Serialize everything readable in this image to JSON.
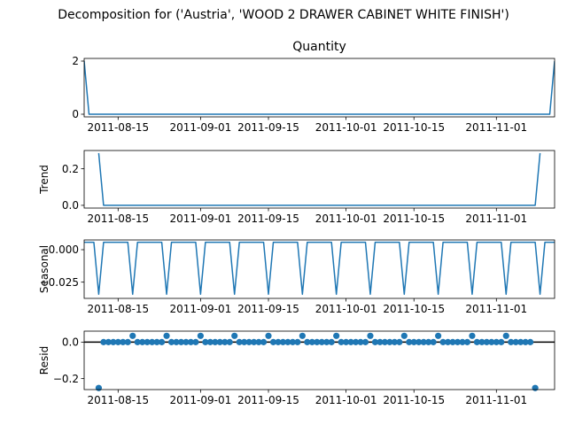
{
  "figure": {
    "suptitle": "Decomposition for ('Austria', 'WOOD 2 DRAWER CABINET WHITE FINISH')"
  },
  "colors": {
    "line": "#1f77b4",
    "marker": "#1f77b4",
    "axis": "#000000",
    "background": "#ffffff"
  },
  "chart_data": [
    {
      "type": "line",
      "id": "quantity",
      "title": "Quantity",
      "ylabel": "",
      "x_start": "2011-08-08",
      "x_end": "2011-11-13",
      "xlim": [
        "2011-08-08",
        "2011-11-13"
      ],
      "ylim": [
        -0.1,
        2.1
      ],
      "xticks": [
        "2011-08-15",
        "2011-09-01",
        "2011-09-15",
        "2011-10-01",
        "2011-10-15",
        "2011-11-01"
      ],
      "yticks": [
        0,
        2
      ],
      "ytick_labels": [
        "0",
        "2"
      ],
      "values": [
        2,
        0,
        0,
        0,
        0,
        0,
        0,
        0,
        0,
        0,
        0,
        0,
        0,
        0,
        0,
        0,
        0,
        0,
        0,
        0,
        0,
        0,
        0,
        0,
        0,
        0,
        0,
        0,
        0,
        0,
        0,
        0,
        0,
        0,
        0,
        0,
        0,
        0,
        0,
        0,
        0,
        0,
        0,
        0,
        0,
        0,
        0,
        0,
        0,
        0,
        0,
        0,
        0,
        0,
        0,
        0,
        0,
        0,
        0,
        0,
        0,
        0,
        0,
        0,
        0,
        0,
        0,
        0,
        0,
        0,
        0,
        0,
        0,
        0,
        0,
        0,
        0,
        0,
        0,
        0,
        0,
        0,
        0,
        0,
        0,
        0,
        0,
        0,
        0,
        0,
        0,
        0,
        0,
        0,
        0,
        0,
        0,
        2
      ]
    },
    {
      "type": "line",
      "id": "trend",
      "title": "",
      "ylabel": "Trend",
      "x_start": "2011-08-11",
      "x_end": "2011-11-10",
      "xlim": [
        "2011-08-08",
        "2011-11-13"
      ],
      "ylim": [
        -0.015,
        0.3
      ],
      "xticks": [
        "2011-08-15",
        "2011-09-01",
        "2011-09-15",
        "2011-10-01",
        "2011-10-15",
        "2011-11-01"
      ],
      "yticks": [
        0,
        0.2
      ],
      "ytick_labels": [
        "0.0",
        "0.2"
      ],
      "values": [
        0.2857,
        0,
        0,
        0,
        0,
        0,
        0,
        0,
        0,
        0,
        0,
        0,
        0,
        0,
        0,
        0,
        0,
        0,
        0,
        0,
        0,
        0,
        0,
        0,
        0,
        0,
        0,
        0,
        0,
        0,
        0,
        0,
        0,
        0,
        0,
        0,
        0,
        0,
        0,
        0,
        0,
        0,
        0,
        0,
        0,
        0,
        0,
        0,
        0,
        0,
        0,
        0,
        0,
        0,
        0,
        0,
        0,
        0,
        0,
        0,
        0,
        0,
        0,
        0,
        0,
        0,
        0,
        0,
        0,
        0,
        0,
        0,
        0,
        0,
        0,
        0,
        0,
        0,
        0,
        0,
        0,
        0,
        0,
        0,
        0,
        0,
        0,
        0,
        0,
        0,
        0,
        0.2857
      ]
    },
    {
      "type": "line",
      "id": "seasonal",
      "title": "",
      "ylabel": "Seasonal",
      "x_start": "2011-08-08",
      "x_end": "2011-11-13",
      "xlim": [
        "2011-08-08",
        "2011-11-13"
      ],
      "ylim": [
        -0.0375,
        0.0075
      ],
      "xticks": [
        "2011-08-15",
        "2011-09-01",
        "2011-09-15",
        "2011-10-01",
        "2011-10-15",
        "2011-11-01"
      ],
      "yticks": [
        0,
        -0.025
      ],
      "ytick_labels": [
        "0.000",
        "−0.025"
      ],
      "values": [
        0.0057,
        0.0057,
        0.0057,
        -0.0343,
        0.0057,
        0.0057,
        0.0057,
        0.0057,
        0.0057,
        0.0057,
        -0.0343,
        0.0057,
        0.0057,
        0.0057,
        0.0057,
        0.0057,
        0.0057,
        -0.0343,
        0.0057,
        0.0057,
        0.0057,
        0.0057,
        0.0057,
        0.0057,
        -0.0343,
        0.0057,
        0.0057,
        0.0057,
        0.0057,
        0.0057,
        0.0057,
        -0.0343,
        0.0057,
        0.0057,
        0.0057,
        0.0057,
        0.0057,
        0.0057,
        -0.0343,
        0.0057,
        0.0057,
        0.0057,
        0.0057,
        0.0057,
        0.0057,
        -0.0343,
        0.0057,
        0.0057,
        0.0057,
        0.0057,
        0.0057,
        0.0057,
        -0.0343,
        0.0057,
        0.0057,
        0.0057,
        0.0057,
        0.0057,
        0.0057,
        -0.0343,
        0.0057,
        0.0057,
        0.0057,
        0.0057,
        0.0057,
        0.0057,
        -0.0343,
        0.0057,
        0.0057,
        0.0057,
        0.0057,
        0.0057,
        0.0057,
        -0.0343,
        0.0057,
        0.0057,
        0.0057,
        0.0057,
        0.0057,
        0.0057,
        -0.0343,
        0.0057,
        0.0057,
        0.0057,
        0.0057,
        0.0057,
        0.0057,
        -0.0343,
        0.0057,
        0.0057,
        0.0057,
        0.0057,
        0.0057,
        0.0057,
        -0.0343,
        0.0057,
        0.0057,
        0.0057
      ]
    },
    {
      "type": "scatter",
      "id": "resid",
      "title": "",
      "ylabel": "Resid",
      "x_start": "2011-08-11",
      "x_end": "2011-11-10",
      "xlim": [
        "2011-08-08",
        "2011-11-13"
      ],
      "ylim": [
        -0.26,
        0.06
      ],
      "xticks": [
        "2011-08-15",
        "2011-09-01",
        "2011-09-15",
        "2011-10-01",
        "2011-10-15",
        "2011-11-01"
      ],
      "yticks": [
        0,
        -0.2
      ],
      "ytick_labels": [
        "0.0",
        "−0.2"
      ],
      "zero_line": true,
      "values": [
        -0.2514,
        0.0,
        0.0,
        0.0,
        0.0,
        0.0,
        0.0,
        0.0343,
        0.0,
        0.0,
        0.0,
        0.0,
        0.0,
        0.0,
        0.0343,
        0.0,
        0.0,
        0.0,
        0.0,
        0.0,
        0.0,
        0.0343,
        0.0,
        0.0,
        0.0,
        0.0,
        0.0,
        0.0,
        0.0343,
        0.0,
        0.0,
        0.0,
        0.0,
        0.0,
        0.0,
        0.0343,
        0.0,
        0.0,
        0.0,
        0.0,
        0.0,
        0.0,
        0.0343,
        0.0,
        0.0,
        0.0,
        0.0,
        0.0,
        0.0,
        0.0343,
        0.0,
        0.0,
        0.0,
        0.0,
        0.0,
        0.0,
        0.0343,
        0.0,
        0.0,
        0.0,
        0.0,
        0.0,
        0.0,
        0.0343,
        0.0,
        0.0,
        0.0,
        0.0,
        0.0,
        0.0,
        0.0343,
        0.0,
        0.0,
        0.0,
        0.0,
        0.0,
        0.0,
        0.0343,
        0.0,
        0.0,
        0.0,
        0.0,
        0.0,
        0.0,
        0.0343,
        0.0,
        0.0,
        0.0,
        0.0,
        0.0,
        -0.2514
      ]
    }
  ]
}
